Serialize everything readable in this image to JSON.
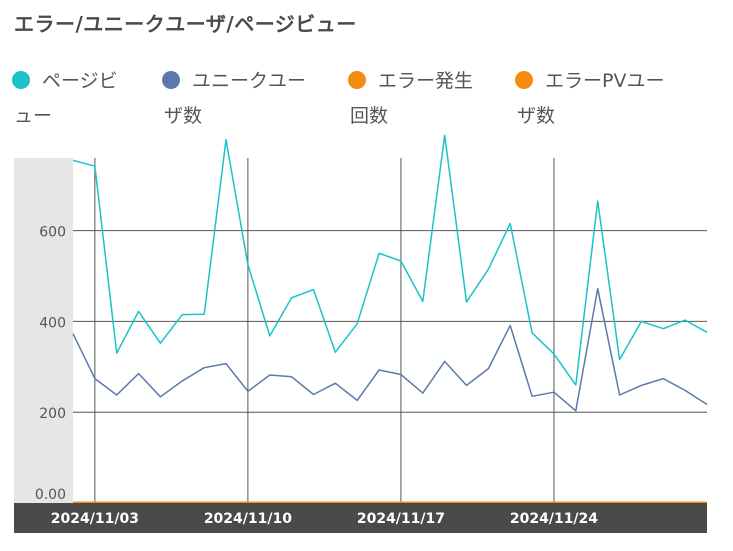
{
  "title": "エラー/ユニークユーザ/ページビュー",
  "legend": [
    {
      "line1": "ページビ",
      "line2": "ュー",
      "color": "#19c3c8"
    },
    {
      "line1": "ユニークユー",
      "line2": "ザ数",
      "color": "#5d78ab"
    },
    {
      "line1": "エラー発生",
      "line2": "回数",
      "color": "#f28c10"
    },
    {
      "line1": "エラーPVユー",
      "line2": "ザ数",
      "color": "#f28c10"
    }
  ],
  "chart_data": {
    "type": "line",
    "y_ticks": [
      "0.00",
      "200",
      "400",
      "600"
    ],
    "x_ticks": [
      "2024/11/03",
      "2024/11/10",
      "2024/11/17",
      "2024/11/24"
    ],
    "ylim": [
      0,
      760
    ],
    "grid": true,
    "legend_position": "top",
    "series": [
      {
        "name": "ページビュー",
        "color": "#19c3c8",
        "values": [
          755,
          742,
          330,
          422,
          352,
          415,
          416,
          800,
          525,
          368,
          452,
          470,
          332,
          395,
          550,
          533,
          444,
          810,
          443,
          515,
          616,
          375,
          328,
          260,
          665,
          316,
          400,
          384,
          403,
          376
        ]
      },
      {
        "name": "ユニークユーザ数",
        "color": "#5d78ab",
        "values": [
          373,
          274,
          238,
          285,
          234,
          269,
          298,
          307,
          246,
          282,
          278,
          239,
          264,
          226,
          293,
          283,
          242,
          312,
          259,
          296,
          391,
          235,
          244,
          203,
          472,
          238,
          259,
          274,
          248,
          217
        ]
      },
      {
        "name": "エラー発生回数",
        "color": "#f28c10",
        "values": [
          0,
          0,
          0,
          0,
          0,
          0,
          0,
          0,
          0,
          0,
          0,
          0,
          0,
          0,
          0,
          0,
          0,
          0,
          0,
          0,
          0,
          0,
          0,
          0,
          0,
          0,
          0,
          0,
          0,
          0
        ]
      },
      {
        "name": "エラーPVユーザ数",
        "color": "#f28c10",
        "values": [
          0,
          0,
          0,
          0,
          0,
          0,
          0,
          0,
          0,
          0,
          0,
          0,
          0,
          0,
          0,
          0,
          0,
          0,
          0,
          0,
          0,
          0,
          0,
          0,
          0,
          0,
          0,
          0,
          0,
          0
        ]
      }
    ]
  }
}
